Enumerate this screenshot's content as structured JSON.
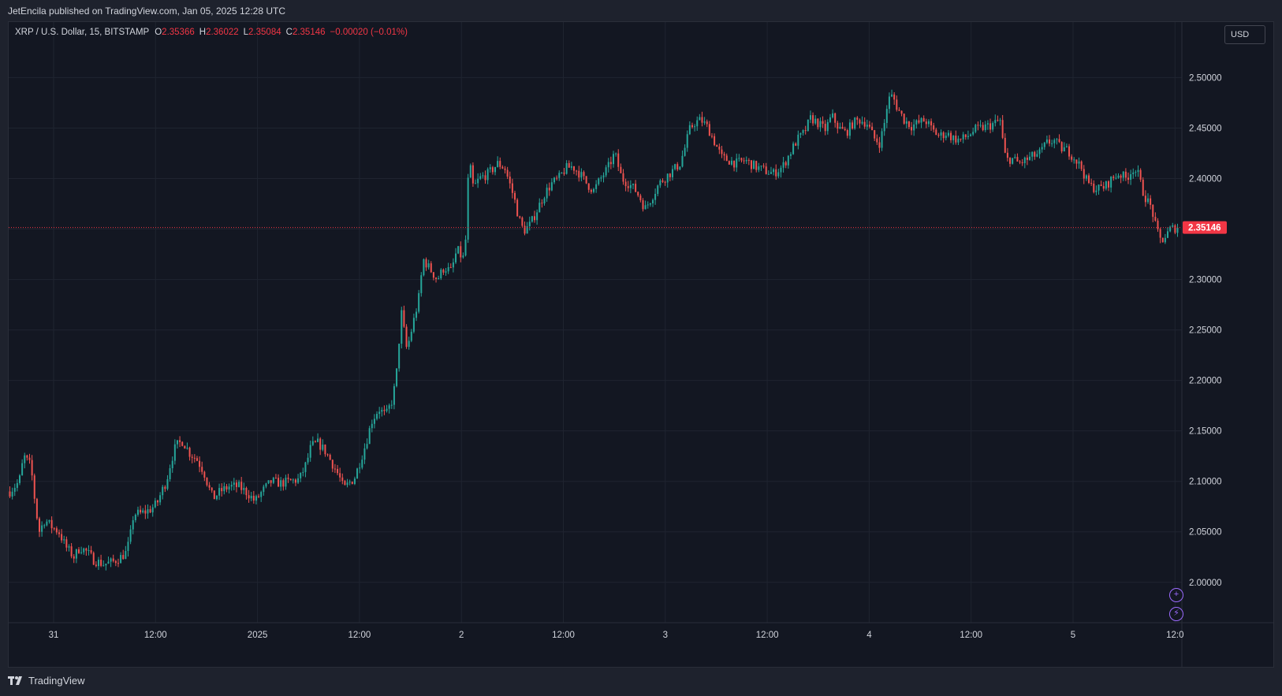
{
  "header": {
    "published_by": "JetEncila published on TradingView.com, Jan 05, 2025 12:28 UTC"
  },
  "legend": {
    "symbol": "XRP / U.S. Dollar, 15, BITSTAMP",
    "open_label": "O",
    "open": "2.35366",
    "high_label": "H",
    "high": "2.36022",
    "low_label": "L",
    "low": "2.35084",
    "close_label": "C",
    "close": "2.35146",
    "change": "−0.00020 (−0.01%)"
  },
  "currency": "USD",
  "footer": {
    "brand": "TradingView",
    "logo_icon": "tradingview-logo-icon"
  },
  "colors": {
    "background": "#131722",
    "up": "#26a69a",
    "down": "#ef5350",
    "last_price": "#f23645",
    "grid": "#1f2430",
    "text": "#d1d4dc"
  },
  "side_icons": [
    "plus-circle-icon",
    "lightning-circle-icon"
  ],
  "chart_data": {
    "type": "candlestick",
    "interval": "15",
    "y_axis_labels": [
      "2.50000",
      "2.45000",
      "2.40000",
      "2.35000",
      "2.30000",
      "2.25000",
      "2.20000",
      "2.15000",
      "2.10000",
      "2.05000",
      "2.00000"
    ],
    "ylim": [
      1.96,
      2.555
    ],
    "x_axis_labels": [
      "31",
      "12:00",
      "2025",
      "12:00",
      "2",
      "12:00",
      "3",
      "12:00",
      "4",
      "12:00",
      "5",
      "12:0"
    ],
    "last_price": 2.35146,
    "last_price_label": "2.35146",
    "grid": true,
    "path": [
      [
        0,
        2.09
      ],
      [
        0.008,
        2.1
      ],
      [
        0.012,
        2.125
      ],
      [
        0.018,
        2.115
      ],
      [
        0.022,
        2.075
      ],
      [
        0.025,
        2.05
      ],
      [
        0.03,
        2.062
      ],
      [
        0.036,
        2.055
      ],
      [
        0.042,
        2.05
      ],
      [
        0.048,
        2.035
      ],
      [
        0.055,
        2.025
      ],
      [
        0.06,
        2.035
      ],
      [
        0.066,
        2.03
      ],
      [
        0.072,
        2.022
      ],
      [
        0.08,
        2.018
      ],
      [
        0.088,
        2.02
      ],
      [
        0.095,
        2.025
      ],
      [
        0.1,
        2.03
      ],
      [
        0.103,
        2.045
      ],
      [
        0.106,
        2.068
      ],
      [
        0.112,
        2.068
      ],
      [
        0.12,
        2.072
      ],
      [
        0.126,
        2.078
      ],
      [
        0.13,
        2.09
      ],
      [
        0.134,
        2.1
      ],
      [
        0.138,
        2.12
      ],
      [
        0.142,
        2.135
      ],
      [
        0.148,
        2.14
      ],
      [
        0.154,
        2.128
      ],
      [
        0.16,
        2.122
      ],
      [
        0.166,
        2.11
      ],
      [
        0.17,
        2.095
      ],
      [
        0.174,
        2.083
      ],
      [
        0.18,
        2.09
      ],
      [
        0.188,
        2.095
      ],
      [
        0.196,
        2.095
      ],
      [
        0.204,
        2.088
      ],
      [
        0.21,
        2.08
      ],
      [
        0.216,
        2.09
      ],
      [
        0.224,
        2.1
      ],
      [
        0.232,
        2.098
      ],
      [
        0.24,
        2.1
      ],
      [
        0.248,
        2.102
      ],
      [
        0.254,
        2.118
      ],
      [
        0.258,
        2.135
      ],
      [
        0.264,
        2.138
      ],
      [
        0.27,
        2.13
      ],
      [
        0.276,
        2.118
      ],
      [
        0.282,
        2.105
      ],
      [
        0.286,
        2.092
      ],
      [
        0.29,
        2.098
      ],
      [
        0.295,
        2.103
      ],
      [
        0.3,
        2.12
      ],
      [
        0.305,
        2.138
      ],
      [
        0.31,
        2.16
      ],
      [
        0.316,
        2.172
      ],
      [
        0.322,
        2.165
      ],
      [
        0.328,
        2.182
      ],
      [
        0.332,
        2.215
      ],
      [
        0.335,
        2.27
      ],
      [
        0.34,
        2.23
      ],
      [
        0.345,
        2.255
      ],
      [
        0.35,
        2.28
      ],
      [
        0.354,
        2.32
      ],
      [
        0.36,
        2.31
      ],
      [
        0.366,
        2.3
      ],
      [
        0.372,
        2.312
      ],
      [
        0.378,
        2.308
      ],
      [
        0.383,
        2.33
      ],
      [
        0.388,
        2.32
      ],
      [
        0.391,
        2.345
      ],
      [
        0.393,
        2.42
      ],
      [
        0.397,
        2.39
      ],
      [
        0.402,
        2.4
      ],
      [
        0.41,
        2.405
      ],
      [
        0.418,
        2.415
      ],
      [
        0.424,
        2.41
      ],
      [
        0.428,
        2.395
      ],
      [
        0.432,
        2.38
      ],
      [
        0.436,
        2.36
      ],
      [
        0.44,
        2.348
      ],
      [
        0.446,
        2.355
      ],
      [
        0.452,
        2.37
      ],
      [
        0.458,
        2.385
      ],
      [
        0.464,
        2.395
      ],
      [
        0.47,
        2.4
      ],
      [
        0.476,
        2.41
      ],
      [
        0.482,
        2.412
      ],
      [
        0.488,
        2.405
      ],
      [
        0.494,
        2.395
      ],
      [
        0.5,
        2.388
      ],
      [
        0.506,
        2.4
      ],
      [
        0.512,
        2.41
      ],
      [
        0.518,
        2.425
      ],
      [
        0.524,
        2.4
      ],
      [
        0.53,
        2.395
      ],
      [
        0.536,
        2.388
      ],
      [
        0.54,
        2.38
      ],
      [
        0.544,
        2.37
      ],
      [
        0.55,
        2.382
      ],
      [
        0.556,
        2.395
      ],
      [
        0.562,
        2.402
      ],
      [
        0.568,
        2.408
      ],
      [
        0.574,
        2.415
      ],
      [
        0.578,
        2.43
      ],
      [
        0.582,
        2.448
      ],
      [
        0.586,
        2.455
      ],
      [
        0.592,
        2.458
      ],
      [
        0.598,
        2.45
      ],
      [
        0.604,
        2.435
      ],
      [
        0.61,
        2.42
      ],
      [
        0.616,
        2.418
      ],
      [
        0.622,
        2.415
      ],
      [
        0.63,
        2.418
      ],
      [
        0.638,
        2.412
      ],
      [
        0.646,
        2.408
      ],
      [
        0.654,
        2.405
      ],
      [
        0.662,
        2.412
      ],
      [
        0.668,
        2.425
      ],
      [
        0.674,
        2.438
      ],
      [
        0.68,
        2.445
      ],
      [
        0.686,
        2.46
      ],
      [
        0.692,
        2.455
      ],
      [
        0.698,
        2.448
      ],
      [
        0.704,
        2.462
      ],
      [
        0.71,
        2.45
      ],
      [
        0.716,
        2.445
      ],
      [
        0.722,
        2.455
      ],
      [
        0.728,
        2.458
      ],
      [
        0.734,
        2.455
      ],
      [
        0.74,
        2.44
      ],
      [
        0.745,
        2.435
      ],
      [
        0.749,
        2.455
      ],
      [
        0.752,
        2.478
      ],
      [
        0.756,
        2.482
      ],
      [
        0.76,
        2.47
      ],
      [
        0.766,
        2.458
      ],
      [
        0.772,
        2.452
      ],
      [
        0.778,
        2.455
      ],
      [
        0.784,
        2.458
      ],
      [
        0.79,
        2.448
      ],
      [
        0.796,
        2.442
      ],
      [
        0.802,
        2.445
      ],
      [
        0.808,
        2.44
      ],
      [
        0.814,
        2.438
      ],
      [
        0.82,
        2.442
      ],
      [
        0.826,
        2.448
      ],
      [
        0.832,
        2.45
      ],
      [
        0.838,
        2.452
      ],
      [
        0.844,
        2.455
      ],
      [
        0.848,
        2.458
      ],
      [
        0.85,
        2.44
      ],
      [
        0.853,
        2.418
      ],
      [
        0.858,
        2.42
      ],
      [
        0.864,
        2.415
      ],
      [
        0.87,
        2.418
      ],
      [
        0.876,
        2.422
      ],
      [
        0.882,
        2.425
      ],
      [
        0.888,
        2.435
      ],
      [
        0.894,
        2.438
      ],
      [
        0.9,
        2.43
      ],
      [
        0.906,
        2.428
      ],
      [
        0.912,
        2.42
      ],
      [
        0.918,
        2.41
      ],
      [
        0.922,
        2.398
      ],
      [
        0.926,
        2.392
      ],
      [
        0.932,
        2.39
      ],
      [
        0.938,
        2.392
      ],
      [
        0.944,
        2.4
      ],
      [
        0.95,
        2.405
      ],
      [
        0.956,
        2.4
      ],
      [
        0.962,
        2.41
      ],
      [
        0.966,
        2.405
      ],
      [
        0.97,
        2.388
      ],
      [
        0.974,
        2.378
      ],
      [
        0.978,
        2.37
      ],
      [
        0.982,
        2.348
      ],
      [
        0.986,
        2.338
      ],
      [
        0.99,
        2.343
      ],
      [
        0.994,
        2.35
      ],
      [
        1.0,
        2.35146
      ]
    ]
  }
}
